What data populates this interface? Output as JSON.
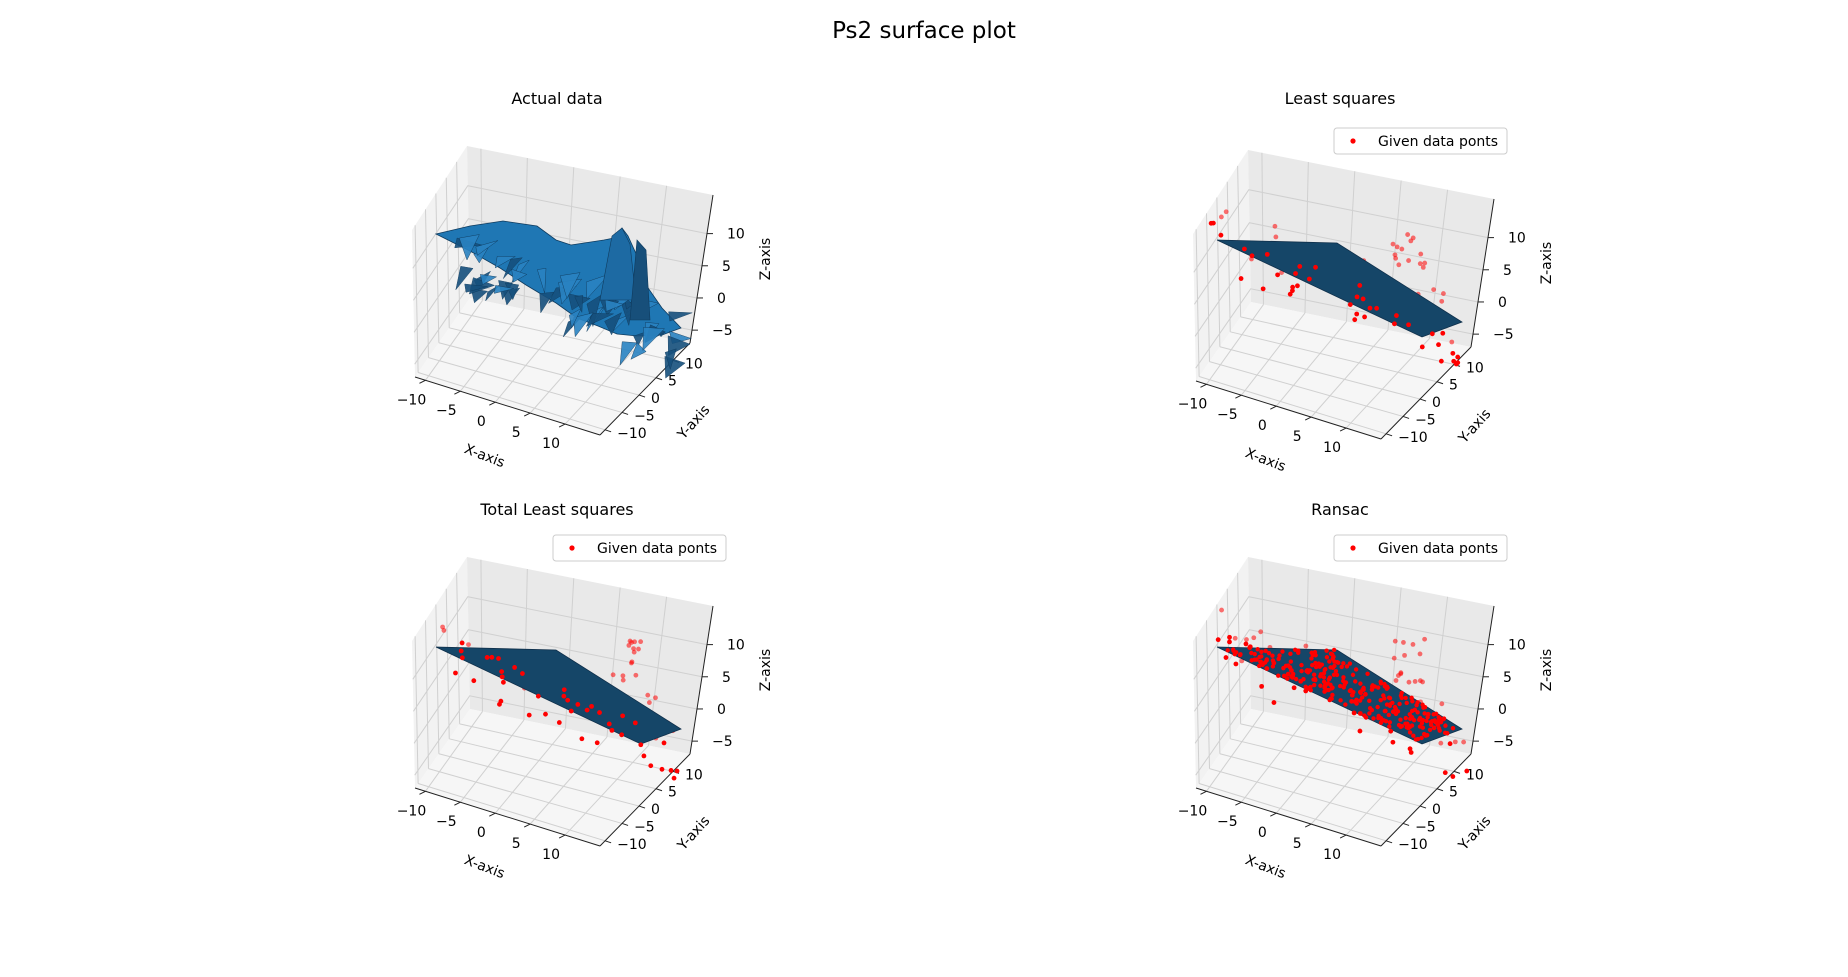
{
  "figure": {
    "title": "Ps2 surface plot"
  },
  "colors": {
    "surface": "#1f77b4",
    "plane": "#154668",
    "points": "#ff0000",
    "pane": "#f2f2f2",
    "grid": "#d0d0d0"
  },
  "chart_data": [
    {
      "type": "surface",
      "title": "Actual data",
      "xlabel": "X-axis",
      "ylabel": "Y-axis",
      "zlabel": "Z-axis",
      "xlim": [
        -10,
        10
      ],
      "ylim": [
        -10,
        10
      ],
      "zlim": [
        -8,
        13
      ],
      "xticks": [
        "−10",
        "−5",
        "0",
        "5",
        "10"
      ],
      "yticks": [
        "−10",
        "−5",
        "0",
        "5",
        "10"
      ],
      "zticks": [
        "−5",
        "0",
        "5",
        "10"
      ],
      "legend": null
    },
    {
      "type": "scatter-surface",
      "title": "Least squares",
      "xlabel": "X-axis",
      "ylabel": "Y-axis",
      "zlabel": "Z-axis",
      "xlim": [
        -10,
        10
      ],
      "ylim": [
        -10,
        10
      ],
      "zlim": [
        -8,
        13
      ],
      "xticks": [
        "−10",
        "−5",
        "0",
        "5",
        "10"
      ],
      "yticks": [
        "−10",
        "−5",
        "0",
        "5",
        "10"
      ],
      "zticks": [
        "−5",
        "0",
        "5",
        "10"
      ],
      "legend": {
        "label": "Given data ponts",
        "placement": "upper-right"
      }
    },
    {
      "type": "scatter-surface",
      "title": "Total Least squares",
      "xlabel": "X-axis",
      "ylabel": "Y-axis",
      "zlabel": "Z-axis",
      "xlim": [
        -10,
        10
      ],
      "ylim": [
        -10,
        10
      ],
      "zlim": [
        -8,
        13
      ],
      "xticks": [
        "−10",
        "−5",
        "0",
        "5",
        "10"
      ],
      "yticks": [
        "−10",
        "−5",
        "0",
        "5",
        "10"
      ],
      "zticks": [
        "−5",
        "0",
        "5",
        "10"
      ],
      "legend": {
        "label": "Given data ponts",
        "placement": "upper-right"
      }
    },
    {
      "type": "scatter-surface",
      "title": "Ransac",
      "xlabel": "X-axis",
      "ylabel": "Y-axis",
      "zlabel": "Z-axis",
      "xlim": [
        -10,
        10
      ],
      "ylim": [
        -10,
        10
      ],
      "zlim": [
        -8,
        13
      ],
      "xticks": [
        "−10",
        "−5",
        "0",
        "5",
        "10"
      ],
      "yticks": [
        "−10",
        "−5",
        "0",
        "5",
        "10"
      ],
      "zticks": [
        "−5",
        "0",
        "5",
        "10"
      ],
      "legend": {
        "label": "Given data ponts",
        "placement": "upper-right"
      }
    }
  ]
}
